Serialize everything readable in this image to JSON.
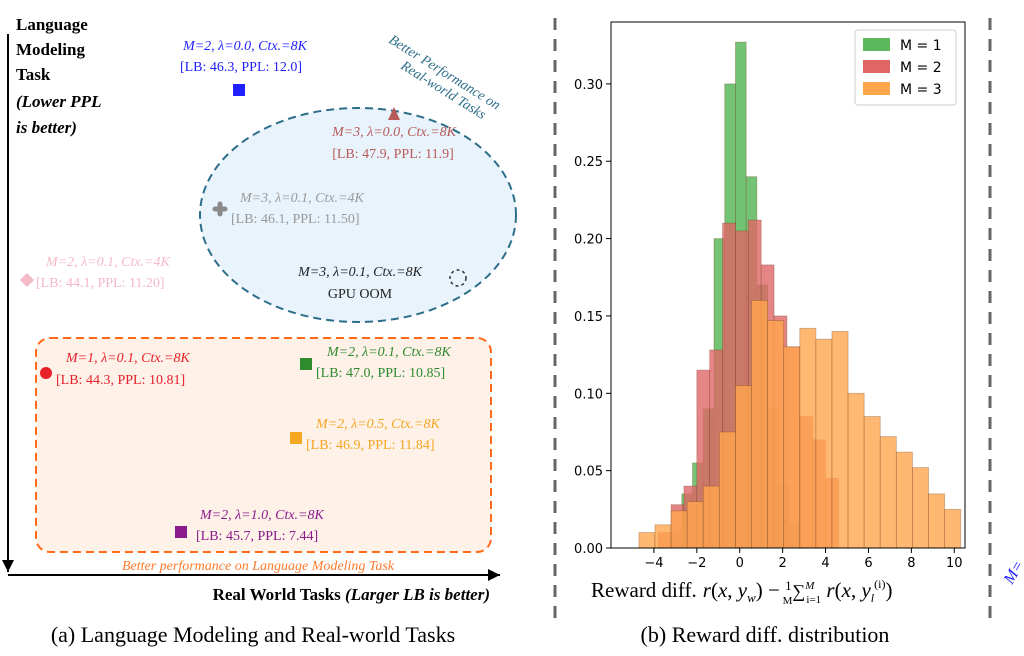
{
  "chart_data": [
    {
      "type": "scatter",
      "panel_caption": "(a) Language Modeling and Real-world Tasks",
      "xlabel_main": "Real World Tasks",
      "xlabel_paren": "(Larger LB is better)",
      "ylabel_lines": [
        "Language",
        "Modeling",
        "Task"
      ],
      "ylabel_note_lines": [
        "(Lower PPL",
        " is better)"
      ],
      "region_labels": {
        "top_arc": [
          "Better Performance on",
          "Real-world Tasks"
        ],
        "bottom": "Better performance on Language Modeling Task"
      },
      "points": [
        {
          "config": "M=2, λ=0.0, Ctx.=8K",
          "metrics": "[LB: 46.3, PPL: 12.0]",
          "lb": 46.3,
          "ppl": 12.0,
          "color": "#1f1fff",
          "marker": "square"
        },
        {
          "config": "M=3, λ=0.0, Ctx.=8K",
          "metrics": "[LB: 47.9, PPL: 11.9]",
          "lb": 47.9,
          "ppl": 11.9,
          "color": "#b85a58",
          "marker": "triangle"
        },
        {
          "config": "M=3, λ=0.1, Ctx.=4K",
          "metrics": "[LB: 46.1, PPL: 11.50]",
          "lb": 46.1,
          "ppl": 11.5,
          "color": "#9a9a9a",
          "marker": "plus"
        },
        {
          "config": "M=2, λ=0.1, Ctx.=4K",
          "metrics": "[LB: 44.1, PPL: 11.20]",
          "lb": 44.1,
          "ppl": 11.2,
          "color": "#f4b8c6",
          "marker": "diamond"
        },
        {
          "config": "M=3, λ=0.1, Ctx.=8K",
          "metrics": "GPU OOM",
          "color": "#222222",
          "marker": "dashed-circle"
        },
        {
          "config": "M=1, λ=0.1, Ctx.=8K",
          "metrics": "[LB: 44.3, PPL: 10.81]",
          "lb": 44.3,
          "ppl": 10.81,
          "color": "#e8202a",
          "marker": "circle"
        },
        {
          "config": "M=2, λ=0.1, Ctx.=8K",
          "metrics": "[LB: 47.0, PPL: 10.85]",
          "lb": 47.0,
          "ppl": 10.85,
          "color": "#2e8b2e",
          "marker": "square"
        },
        {
          "config": "M=2, λ=0.5, Ctx.=8K",
          "metrics": "[LB: 46.9, PPL: 11.84]",
          "lb": 46.9,
          "ppl": 11.84,
          "color": "#f5a623",
          "marker": "square"
        },
        {
          "config": "M=2, λ=1.0, Ctx.=8K",
          "metrics": "[LB: 45.7, PPL: 7.44]",
          "lb": 45.7,
          "ppl": 7.44,
          "color": "#8b1a8b",
          "marker": "square"
        }
      ]
    },
    {
      "type": "histogram",
      "panel_caption": "(b) Reward diff. distribution",
      "xlabel_prefix": "Reward  diff.",
      "xlim": [
        -6,
        10.5
      ],
      "ylim": [
        0,
        0.34
      ],
      "xticks": [
        -4,
        -2,
        0,
        2,
        4,
        6,
        8,
        10
      ],
      "yticks": [
        0.0,
        0.05,
        0.1,
        0.15,
        0.2,
        0.25,
        0.3
      ],
      "ytick_labels": [
        "0.00",
        "0.05",
        "0.10",
        "0.15",
        "0.20",
        "0.25",
        "0.30"
      ],
      "legend_position": "top-right",
      "series": [
        {
          "name": "M = 1",
          "color": "#5cb85c",
          "bin_start": -3.2,
          "bin_width": 0.5,
          "values": [
            0.01,
            0.035,
            0.055,
            0.09,
            0.2,
            0.3,
            0.327,
            0.24,
            0.17,
            0.09,
            0.04,
            0.015
          ]
        },
        {
          "name": "M = 2",
          "color": "#e06666",
          "bin_start": -3.8,
          "bin_width": 0.6,
          "values": [
            0.01,
            0.028,
            0.04,
            0.115,
            0.128,
            0.21,
            0.205,
            0.212,
            0.183,
            0.15,
            0.13,
            0.085,
            0.07,
            0.045
          ]
        },
        {
          "name": "M = 3",
          "color": "#ffa64d",
          "bin_start": -4.7,
          "bin_width": 0.75,
          "values": [
            0.01,
            0.015,
            0.024,
            0.03,
            0.04,
            0.075,
            0.105,
            0.16,
            0.147,
            0.13,
            0.142,
            0.135,
            0.14,
            0.1,
            0.085,
            0.072,
            0.062,
            0.052,
            0.035,
            0.025
          ]
        }
      ]
    }
  ],
  "right_edge_fragment": "M="
}
